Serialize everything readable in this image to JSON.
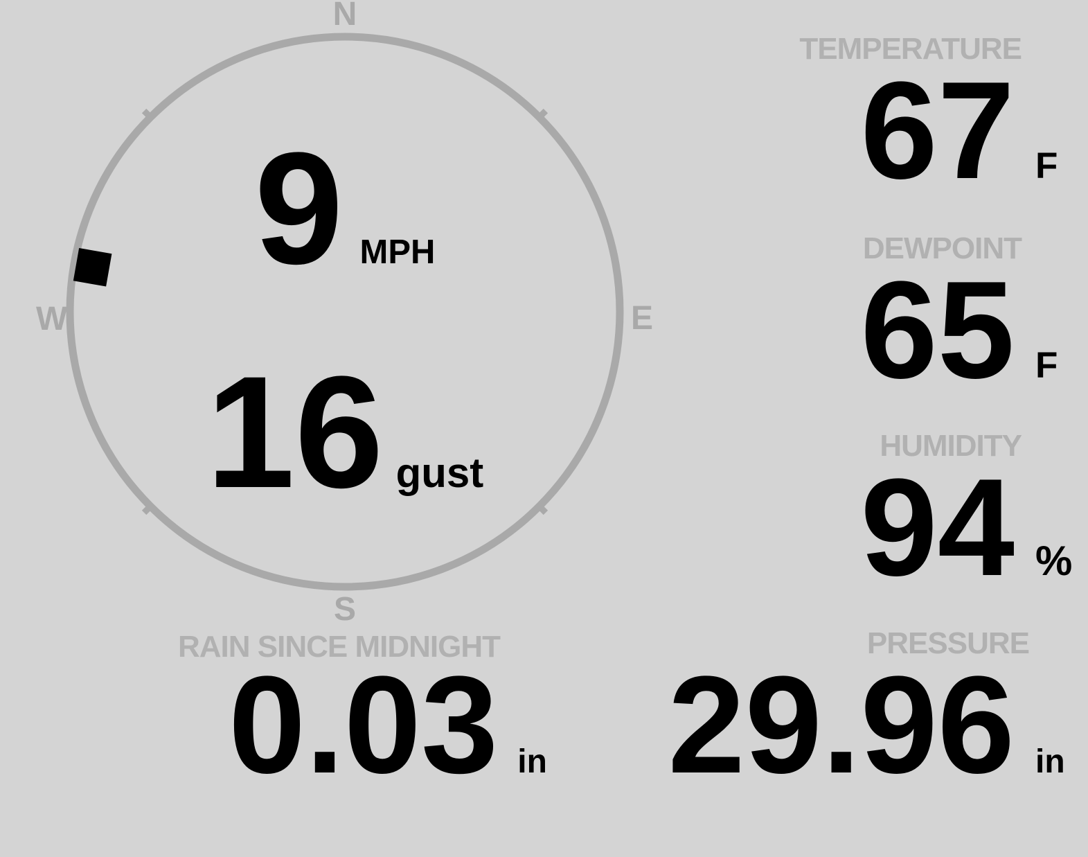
{
  "colors": {
    "background": "#d4d4d4",
    "gauge_gray": "#a9a9a9",
    "label_gray": "#b1b1b1",
    "value_black": "#000000"
  },
  "compass": {
    "cardinals": {
      "north": "N",
      "east": "E",
      "south": "S",
      "west": "W"
    },
    "wind_direction_deg": 280,
    "speed": {
      "value": "9",
      "unit": "MPH"
    },
    "gust": {
      "value": "16",
      "unit": "gust"
    }
  },
  "readings": {
    "temperature": {
      "label": "TEMPERATURE",
      "value": "67",
      "unit": "F"
    },
    "dewpoint": {
      "label": "DEWPOINT",
      "value": "65",
      "unit": "F"
    },
    "humidity": {
      "label": "HUMIDITY",
      "value": "94",
      "unit": "%"
    },
    "rain": {
      "label": "RAIN SINCE MIDNIGHT",
      "value": "0.03",
      "unit": "in"
    },
    "pressure": {
      "label": "PRESSURE",
      "value": "29.96",
      "unit": "in"
    }
  }
}
